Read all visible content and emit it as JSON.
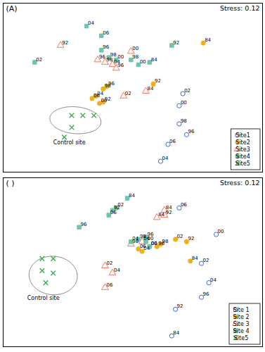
{
  "chart_data": [
    {
      "type": "scatter",
      "title": "(A)",
      "tick_labels": false,
      "legend": "lower right",
      "xlim": [
        -0.55,
        0.85
      ],
      "ylim": [
        -0.85,
        0.55
      ],
      "annotations": [
        {
          "text": "Stress: 0.12"
        },
        {
          "text": "Control site",
          "x": -0.28,
          "y": -0.62
        }
      ],
      "ellipse": {
        "cx": -0.16,
        "cy": -0.42,
        "width": 0.28,
        "height": 0.22,
        "angle": -15,
        "color": "#888888"
      },
      "series": [
        {
          "name": "Site1",
          "marker": "open circle",
          "x": [
            0.42,
            0.4,
            0.4,
            0.44,
            0.34,
            0.3
          ],
          "values": [
            -0.2,
            -0.3,
            -0.45,
            -0.54,
            -0.62,
            -0.76
          ],
          "labels": [
            "02",
            "00",
            "98",
            "96",
            "06",
            "04"
          ]
        },
        {
          "name": "Site2",
          "marker": "filled circle",
          "x": [
            -0.07,
            -0.05,
            -0.01,
            0.01,
            -0.03,
            -0.01,
            0.26,
            0.53
          ],
          "values": [
            -0.24,
            -0.22,
            -0.16,
            -0.14,
            -0.28,
            -0.27,
            -0.12,
            0.22
          ],
          "labels": [
            "06",
            "04",
            "98",
            "96",
            "00",
            "02",
            "92",
            "84"
          ]
        },
        {
          "name": "Site3",
          "marker": "open triangle",
          "x": [
            -0.24,
            -0.04,
            0.0,
            0.04,
            0.06,
            0.14,
            0.1,
            0.22
          ],
          "values": [
            0.2,
            0.08,
            0.06,
            0.04,
            0.01,
            0.15,
            -0.22,
            -0.18
          ],
          "labels": [
            "92",
            "96",
            "98",
            "04",
            "96",
            "00",
            "02",
            "84"
          ]
        },
        {
          "name": "Site4",
          "marker": "filled square",
          "x": [
            -0.38,
            -0.1,
            -0.02,
            -0.02,
            0.02,
            0.06,
            0.14,
            0.18,
            0.24,
            0.36
          ],
          "values": [
            0.06,
            0.36,
            0.28,
            0.16,
            0.1,
            0.08,
            0.08,
            0.04,
            0.06,
            0.2
          ],
          "labels": [
            "02",
            "04",
            "06",
            "96",
            "98",
            "00",
            "98",
            "00",
            "84",
            "92"
          ]
        },
        {
          "name": "Site5",
          "marker": "x",
          "x": [
            -0.18,
            -0.12,
            -0.06,
            -0.18,
            -0.22
          ],
          "values": [
            -0.38,
            -0.38,
            -0.38,
            -0.48,
            -0.56
          ]
        }
      ]
    },
    {
      "type": "scatter",
      "title": "( )",
      "tick_labels": false,
      "legend": "lower right",
      "xlim": [
        -0.55,
        0.85
      ],
      "ylim": [
        -0.85,
        0.55
      ],
      "annotations": [
        {
          "text": "Stress: 0.12"
        },
        {
          "text": "Control site",
          "x": -0.42,
          "y": -0.46
        }
      ],
      "ellipse": {
        "cx": -0.28,
        "cy": -0.26,
        "width": 0.26,
        "height": 0.32,
        "angle": 5,
        "color": "#888888"
      },
      "series": [
        {
          "name": "Site 1",
          "marker": "open circle",
          "x": [
            0.6,
            0.52,
            0.56,
            0.52,
            0.38,
            0.36,
            0.4
          ],
          "values": [
            0.08,
            -0.16,
            -0.32,
            -0.44,
            -0.54,
            -0.76,
            0.3
          ],
          "labels": [
            "00",
            "02",
            "04",
            "96",
            "92",
            "84",
            "06"
          ]
        },
        {
          "name": "Site 2",
          "marker": "filled circle",
          "x": [
            0.18,
            0.2,
            0.24,
            0.28,
            0.3,
            0.38,
            0.44,
            0.46
          ],
          "values": [
            -0.04,
            -0.06,
            -0.02,
            -0.02,
            0.0,
            0.04,
            0.02,
            -0.14
          ],
          "labels": [
            "06",
            "04",
            "00",
            "96",
            "98",
            "02",
            "92",
            "84"
          ]
        },
        {
          "name": "Site 3",
          "marker": "open triangle",
          "x": [
            0.0,
            0.04,
            0.0,
            0.14,
            0.2,
            0.28,
            0.32,
            0.32
          ],
          "values": [
            -0.18,
            -0.24,
            -0.36,
            0.0,
            0.02,
            0.22,
            0.24,
            0.28
          ],
          "labels": [
            "02",
            "04",
            "06",
            "98",
            "04",
            "84",
            "92",
            "84"
          ]
        },
        {
          "name": "Site 4",
          "marker": "filled square",
          "x": [
            -0.14,
            0.02,
            0.04,
            0.06,
            0.14,
            0.18,
            0.22,
            0.22,
            0.24,
            0.12
          ],
          "values": [
            0.14,
            0.24,
            0.28,
            0.3,
            0.02,
            0.04,
            0.06,
            0.02,
            -0.02,
            0.38
          ],
          "labels": [
            "96",
            "06",
            "92",
            "02",
            "04",
            "98",
            "96",
            "00",
            "06",
            "84"
          ]
        },
        {
          "name": "Site5",
          "marker": "x",
          "x": [
            -0.34,
            -0.28,
            -0.34,
            -0.28,
            -0.32
          ],
          "values": [
            -0.12,
            -0.12,
            -0.22,
            -0.24,
            -0.32
          ]
        }
      ]
    }
  ]
}
